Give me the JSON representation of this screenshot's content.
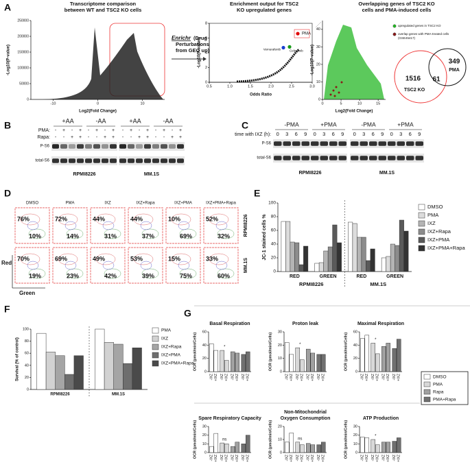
{
  "panel_labels": [
    "A",
    "B",
    "C",
    "D",
    "E",
    "F",
    "G"
  ],
  "A": {
    "volcano": {
      "title_lines": [
        "Transcriptome comparison",
        "between WT and TSC2 KO cells"
      ],
      "y_label": "-Log10(P-value)",
      "x_label": "Log2(Fold Change)",
      "xlim": [
        -15,
        15
      ],
      "xticks": [
        -10,
        0,
        10
      ],
      "ylim": [
        0,
        250000
      ],
      "yticks": [
        0,
        50000,
        100000,
        150000,
        200000,
        250000
      ]
    },
    "enrichr": {
      "name": "Enrichr",
      "lines": [
        "(Drug",
        "Perturbations",
        "from GEO up)"
      ]
    },
    "enrichment": {
      "title_lines": [
        "Enrichment output for TSC2",
        "KO upregulated genes"
      ],
      "y_label": "-Log10(P-value)",
      "x_label": "Odds Ratio",
      "xlim": [
        0.5,
        3.0
      ],
      "xticks": [
        0.5,
        {
          "value": 1,
          "label": "1.0"
        },
        1.5,
        {
          "value": 2,
          "label": "2.0"
        },
        2.5,
        {
          "value": 3,
          "label": "3.0"
        }
      ],
      "ylim": [
        0,
        8
      ],
      "yticks": [
        0,
        2,
        4,
        6,
        8
      ],
      "points": [
        {
          "name": "PMA",
          "x": 2.65,
          "y": 6.6,
          "color": "#e00000"
        },
        {
          "name": "Vemurafenib",
          "x": 2.3,
          "y": 4.7,
          "color": "#1a3fd0"
        },
        {
          "name": "Celecoxib",
          "x": 2.45,
          "y": 4.8,
          "color": "#1a9a1a"
        }
      ]
    },
    "overlap": {
      "title_lines": [
        "Overlapping genes of TSC2 KO",
        "cells and PMA-induced cells"
      ],
      "y_label": "-Log10(P-value)",
      "x_label": "Log2(Fold Change)",
      "xlim": [
        0,
        17
      ],
      "xticks": [
        0,
        5,
        10,
        15
      ],
      "ylim": [
        0,
        45
      ],
      "yticks": [
        0,
        10,
        20,
        30,
        40
      ],
      "legend": [
        {
          "lines": [
            "upregulated genes in TSC2 KO"
          ],
          "color": "#22bb22"
        },
        {
          "lines": [
            "overlap genes with PMA-treated cells",
            "(GSE45417)"
          ],
          "color": "#8b1a1a"
        }
      ],
      "venn": {
        "tsc2_only": 1516,
        "overlap": 61,
        "pma_only": 349,
        "tsc2_label": "TSC2 KO",
        "pma_label": "PMA"
      }
    }
  },
  "B": {
    "headers": [
      "+AA",
      "-AA",
      "+AA",
      "-AA"
    ],
    "pma_label": "PMA:",
    "rapa_label": "Rapa:",
    "pma": [
      "-",
      "+",
      "-",
      "+",
      "-",
      "+",
      "-",
      "+",
      "-",
      "+",
      "-",
      "+",
      "-",
      "+",
      "-",
      "+"
    ],
    "rapa": [
      "-",
      "-",
      "+",
      "+",
      "-",
      "-",
      "+",
      "+",
      "-",
      "-",
      "+",
      "+",
      "-",
      "-",
      "+",
      "+"
    ],
    "rows": [
      "P-S6",
      "total-S6"
    ],
    "cell_lines": [
      "RPMI8226",
      "MM.1S"
    ]
  },
  "C": {
    "headers": [
      "-PMA",
      "+PMA",
      "-PMA",
      "+PMA"
    ],
    "time_label": "time with IXZ (h):",
    "times": [
      0,
      3,
      6,
      9
    ],
    "rows": [
      "P-S6",
      "total-S6"
    ],
    "cell_lines": [
      "RPMI8226",
      "MM.1S"
    ]
  },
  "D": {
    "conditions": [
      "DMSO",
      "PMA",
      "IXZ",
      "IXZ+Rapa",
      "IXZ+PMA",
      "IXZ+PMA+Rapa"
    ],
    "y_axis": "Red",
    "x_axis": "Green",
    "rows": [
      {
        "cell_line": "RPMI8226",
        "red": [
          "76%",
          "72%",
          "44%",
          "44%",
          "10%",
          "52%"
        ],
        "green": [
          "10%",
          "14%",
          "31%",
          "37%",
          "69%",
          "32%"
        ]
      },
      {
        "cell_line": "MM.1S",
        "red": [
          "70%",
          "69%",
          "49%",
          "53%",
          "15%",
          "33%"
        ],
        "green": [
          "19%",
          "23%",
          "42%",
          "39%",
          "75%",
          "60%"
        ]
      }
    ]
  },
  "E": {
    "y_label": "JC-1 stained cells %",
    "ylim": [
      0,
      100
    ],
    "yticks": [
      0,
      20,
      40,
      60,
      80,
      100
    ],
    "categories": [
      "RED",
      "GREEN",
      "RED",
      "GREEN"
    ],
    "cell_lines": [
      "RPMI8226",
      "MM.1S"
    ],
    "series": [
      {
        "name": "DMSO",
        "color": "#ffffff",
        "values": [
          73,
          12,
          72,
          20
        ]
      },
      {
        "name": "PMA",
        "color": "#dcdcdc",
        "values": [
          73,
          13,
          70,
          22
        ]
      },
      {
        "name": "IXZ",
        "color": "#b4b4b4",
        "values": [
          43,
          30,
          50,
          40
        ]
      },
      {
        "name": "IXZ+Rapa",
        "color": "#8c8c8c",
        "values": [
          42,
          36,
          50,
          38
        ]
      },
      {
        "name": "IXZ+PMA",
        "color": "#5a5a5a",
        "values": [
          10,
          68,
          16,
          75
        ]
      },
      {
        "name": "IXZ+PMA+Rapa",
        "color": "#333333",
        "values": [
          37,
          42,
          33,
          59
        ]
      }
    ]
  },
  "F": {
    "y_label": "Survival (% of control)",
    "ylim": [
      0,
      100
    ],
    "yticks": [
      0,
      20,
      40,
      60,
      80,
      100
    ],
    "categories": [
      "RPMI8226",
      "MM.1S"
    ],
    "series": [
      {
        "name": "PMA",
        "color": "#ffffff",
        "values": [
          93,
          100
        ]
      },
      {
        "name": "IXZ",
        "color": "#d2d2d2",
        "values": [
          62,
          78
        ]
      },
      {
        "name": "IXZ+Rapa",
        "color": "#a5a5a5",
        "values": [
          56,
          75
        ]
      },
      {
        "name": "IXZ+PMA",
        "color": "#6e6e6e",
        "values": [
          25,
          43
        ]
      },
      {
        "name": "IXZ+PMA+Rapa",
        "color": "#4a4a4a",
        "values": [
          56,
          69
        ]
      }
    ]
  },
  "G": {
    "y_label": "OCR (pmol/min/Cells)",
    "categories": [
      "-IXZ",
      "+IXZ"
    ],
    "series": [
      {
        "name": "DMSO",
        "color": "#ffffff"
      },
      {
        "name": "PMA",
        "color": "#d8d8d8"
      },
      {
        "name": "Rapa",
        "color": "#a0a0a0"
      },
      {
        "name": "PMA+Rapa",
        "color": "#707070"
      }
    ],
    "plots": [
      {
        "title_lines": [
          "Basal Respiration"
        ],
        "ylim": [
          0,
          60
        ],
        "yticks": [
          0,
          20,
          40,
          60
        ],
        "values": [
          [
            42,
            32
          ],
          [
            32,
            17
          ],
          [
            30,
            28
          ],
          [
            26,
            30
          ]
        ],
        "annotation": "*"
      },
      {
        "title_lines": [
          "Proton leak"
        ],
        "ylim": [
          0,
          30
        ],
        "yticks": [
          0,
          10,
          20,
          30
        ],
        "values": [
          [
            22,
            13
          ],
          [
            18,
            9
          ],
          [
            17,
            14
          ],
          [
            13,
            13
          ]
        ],
        "annotation": "*"
      },
      {
        "title_lines": [
          "Maximal Respiration"
        ],
        "ylim": [
          0,
          60
        ],
        "yticks": [
          0,
          20,
          40,
          60
        ],
        "values": [
          [
            50,
            55
          ],
          [
            43,
            27
          ],
          [
            38,
            43
          ],
          [
            35,
            49
          ]
        ],
        "annotation": "*"
      },
      {
        "title_lines": [
          "Spare Respiratory Capacity"
        ],
        "ylim": [
          0,
          30
        ],
        "yticks": [
          0,
          10,
          20,
          30
        ],
        "values": [
          [
            7,
            22
          ],
          [
            11,
            10
          ],
          [
            7,
            12
          ],
          [
            10,
            20
          ]
        ],
        "annotation": "ns"
      },
      {
        "title_lines": [
          "Non-Mitochondrial",
          "Oxygen Consumption"
        ],
        "ylim": [
          0,
          20
        ],
        "yticks": [
          0,
          10,
          20
        ],
        "values": [
          [
            8,
            15
          ],
          [
            8,
            6
          ],
          [
            7,
            6
          ],
          [
            6,
            8
          ]
        ],
        "annotation": "ns"
      },
      {
        "title_lines": [
          "ATP Production"
        ],
        "ylim": [
          0,
          30
        ],
        "yticks": [
          0,
          10,
          20,
          30
        ],
        "values": [
          [
            18,
            17
          ],
          [
            15,
            9
          ],
          [
            12,
            12
          ],
          [
            13,
            17
          ]
        ],
        "annotation": "*"
      }
    ]
  }
}
